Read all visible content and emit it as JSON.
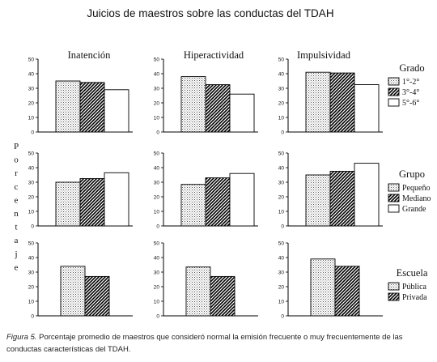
{
  "title": "Juicios de maestros sobre las conductas del TDAH",
  "ylabel": "Porcentaje",
  "columns": [
    "Inatención",
    "Hiperactividad",
    "Impulsividad"
  ],
  "caption": {
    "label": "Figura 5.",
    "text": "Porcentaje promedio de maestros que consideró normal la emisión frecuente o muy frecuentemente de las conductas características del TDAH."
  },
  "legends": [
    {
      "title": "Grado",
      "entries": [
        "1°-2°",
        "3°-4°",
        "5°-6°"
      ]
    },
    {
      "title": "Grupo",
      "entries": [
        "Pequeño",
        "Mediano",
        "Grande"
      ]
    },
    {
      "title": "Escuela",
      "entries": [
        "Pública",
        "Privada"
      ]
    }
  ],
  "patterns": [
    "dotted",
    "hatched",
    "white"
  ],
  "chart_data": [
    {
      "type": "bar",
      "row": "Grado",
      "column": "Inatención",
      "categories": [
        "1°-2°",
        "3°-4°",
        "5°-6°"
      ],
      "values": [
        35,
        34,
        29
      ],
      "ylim": [
        0,
        50
      ],
      "yticks": [
        0,
        10,
        20,
        30,
        40,
        50
      ]
    },
    {
      "type": "bar",
      "row": "Grado",
      "column": "Hiperactividad",
      "categories": [
        "1°-2°",
        "3°-4°",
        "5°-6°"
      ],
      "values": [
        38,
        32.5,
        26
      ],
      "ylim": [
        0,
        50
      ],
      "yticks": [
        0,
        10,
        20,
        30,
        40,
        50
      ]
    },
    {
      "type": "bar",
      "row": "Grado",
      "column": "Impulsividad",
      "categories": [
        "1°-2°",
        "3°-4°",
        "5°-6°"
      ],
      "values": [
        41,
        40.5,
        32.5
      ],
      "ylim": [
        0,
        50
      ],
      "yticks": [
        0,
        10,
        20,
        30,
        40,
        50
      ]
    },
    {
      "type": "bar",
      "row": "Grupo",
      "column": "Inatención",
      "categories": [
        "Pequeño",
        "Mediano",
        "Grande"
      ],
      "values": [
        30,
        32.5,
        36.5
      ],
      "ylim": [
        0,
        50
      ],
      "yticks": [
        0,
        10,
        20,
        30,
        40,
        50
      ]
    },
    {
      "type": "bar",
      "row": "Grupo",
      "column": "Hiperactividad",
      "categories": [
        "Pequeño",
        "Mediano",
        "Grande"
      ],
      "values": [
        28.5,
        33,
        36
      ],
      "ylim": [
        0,
        50
      ],
      "yticks": [
        0,
        10,
        20,
        30,
        40,
        50
      ]
    },
    {
      "type": "bar",
      "row": "Grupo",
      "column": "Impulsividad",
      "categories": [
        "Pequeño",
        "Mediano",
        "Grande"
      ],
      "values": [
        35,
        37.5,
        43
      ],
      "ylim": [
        0,
        50
      ],
      "yticks": [
        0,
        10,
        20,
        30,
        40,
        50
      ]
    },
    {
      "type": "bar",
      "row": "Escuela",
      "column": "Inatención",
      "categories": [
        "Pública",
        "Privada"
      ],
      "values": [
        34,
        27
      ],
      "ylim": [
        0,
        50
      ],
      "yticks": [
        0,
        10,
        20,
        30,
        40,
        50
      ]
    },
    {
      "type": "bar",
      "row": "Escuela",
      "column": "Hiperactividad",
      "categories": [
        "Pública",
        "Privada"
      ],
      "values": [
        33.5,
        27
      ],
      "ylim": [
        0,
        50
      ],
      "yticks": [
        0,
        10,
        20,
        30,
        40,
        50
      ]
    },
    {
      "type": "bar",
      "row": "Escuela",
      "column": "Impulsividad",
      "categories": [
        "Pública",
        "Privada"
      ],
      "values": [
        39,
        34
      ],
      "ylim": [
        0,
        50
      ],
      "yticks": [
        0,
        10,
        20,
        30,
        40,
        50
      ]
    }
  ]
}
